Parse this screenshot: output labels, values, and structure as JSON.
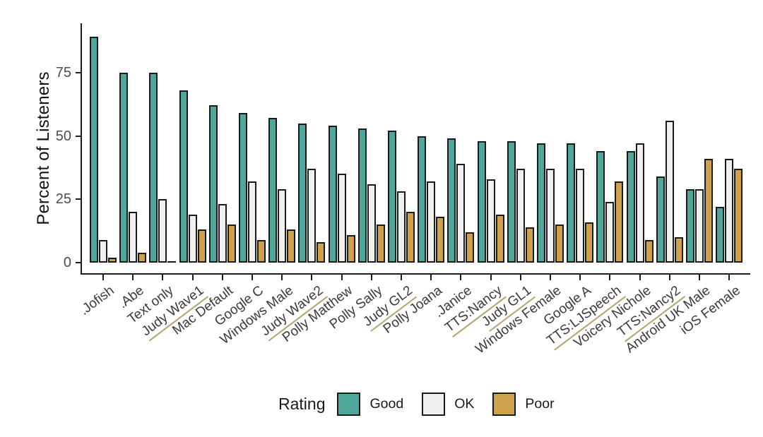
{
  "chart_data": {
    "type": "bar",
    "title": "",
    "ylabel": "Percent of Listeners",
    "xlabel": "",
    "legend_title": "Rating",
    "legend_position": "bottom",
    "grid": false,
    "bar_arrangement": "grouped-dodged-3-per-category",
    "ylim": [
      0,
      94
    ],
    "yticks": [
      0,
      25,
      50,
      75
    ],
    "series": [
      {
        "name": "Good",
        "color": "#4EA79A"
      },
      {
        "name": "OK",
        "color": "#F0F0EE"
      },
      {
        "name": "Poor",
        "color": "#CEA24B"
      }
    ],
    "categories": [
      {
        "label": ".Jofish",
        "underlined": false,
        "values": {
          "Good": 89,
          "OK": 9,
          "Poor": 2
        }
      },
      {
        "label": ".Abe",
        "underlined": false,
        "values": {
          "Good": 75,
          "OK": 20,
          "Poor": 4
        }
      },
      {
        "label": "Text only",
        "underlined": false,
        "values": {
          "Good": 75,
          "OK": 25,
          "Poor": 0
        }
      },
      {
        "label": "Judy Wave1",
        "underlined": true,
        "values": {
          "Good": 68,
          "OK": 19,
          "Poor": 13
        }
      },
      {
        "label": "Mac Default",
        "underlined": false,
        "values": {
          "Good": 62,
          "OK": 23,
          "Poor": 15
        }
      },
      {
        "label": "Google C",
        "underlined": false,
        "values": {
          "Good": 59,
          "OK": 32,
          "Poor": 9
        }
      },
      {
        "label": "Windows Male",
        "underlined": false,
        "values": {
          "Good": 57,
          "OK": 29,
          "Poor": 13
        }
      },
      {
        "label": "Judy Wave2",
        "underlined": true,
        "values": {
          "Good": 55,
          "OK": 37,
          "Poor": 8
        }
      },
      {
        "label": "Polly Matthew",
        "underlined": false,
        "values": {
          "Good": 54,
          "OK": 35,
          "Poor": 11
        }
      },
      {
        "label": "Polly Sally",
        "underlined": false,
        "values": {
          "Good": 53,
          "OK": 31,
          "Poor": 15
        }
      },
      {
        "label": "Judy GL2",
        "underlined": true,
        "values": {
          "Good": 52,
          "OK": 28,
          "Poor": 20
        }
      },
      {
        "label": "Polly Joana",
        "underlined": false,
        "values": {
          "Good": 50,
          "OK": 32,
          "Poor": 18
        }
      },
      {
        "label": ".Janice",
        "underlined": false,
        "values": {
          "Good": 49,
          "OK": 39,
          "Poor": 12
        }
      },
      {
        "label": "TTS:Nancy",
        "underlined": true,
        "values": {
          "Good": 48,
          "OK": 33,
          "Poor": 19
        }
      },
      {
        "label": "Judy GL1",
        "underlined": true,
        "values": {
          "Good": 48,
          "OK": 37,
          "Poor": 14
        }
      },
      {
        "label": "Windows Female",
        "underlined": false,
        "values": {
          "Good": 47,
          "OK": 37,
          "Poor": 15
        }
      },
      {
        "label": "Google A",
        "underlined": false,
        "values": {
          "Good": 47,
          "OK": 37,
          "Poor": 16
        }
      },
      {
        "label": "TTS:LJSpeech",
        "underlined": true,
        "values": {
          "Good": 44,
          "OK": 24,
          "Poor": 32
        }
      },
      {
        "label": "Voicery Nichole",
        "underlined": false,
        "values": {
          "Good": 44,
          "OK": 47,
          "Poor": 9
        }
      },
      {
        "label": "TTS:Nancy2",
        "underlined": true,
        "values": {
          "Good": 34,
          "OK": 56,
          "Poor": 10
        }
      },
      {
        "label": "Android UK Male",
        "underlined": false,
        "values": {
          "Good": 29,
          "OK": 29,
          "Poor": 41
        }
      },
      {
        "label": "iOS Female",
        "underlined": false,
        "values": {
          "Good": 22,
          "OK": 41,
          "Poor": 37
        }
      }
    ]
  },
  "colors": {
    "bar_border": "#1A1A1A",
    "axis": "#1D1D1D",
    "y_tick_label": "#4D4D4D",
    "x_tick_label": "#3A3A3A",
    "label_underline": "#B3A26A",
    "background": "#FFFFFF"
  }
}
